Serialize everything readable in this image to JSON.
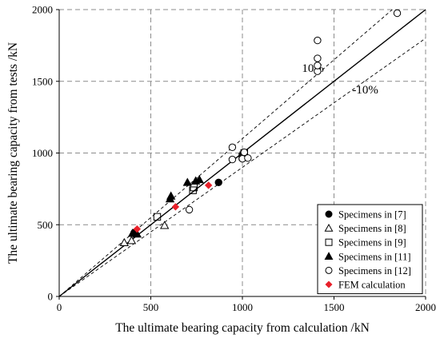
{
  "chart_data": {
    "type": "scatter",
    "xlabel": "The ultimate bearing capacity from calculation /kN",
    "ylabel": "The ultimate bearing capacity from tests /kN",
    "xlim": [
      0,
      2000
    ],
    "ylim": [
      0,
      2000
    ],
    "x_ticks": [
      "0",
      "500",
      "1000",
      "1500",
      "2000"
    ],
    "y_ticks": [
      "0",
      "500",
      "1000",
      "1500",
      "2000"
    ],
    "grid": true,
    "legend_position": "bottom-right",
    "reference_lines": [
      {
        "name": "y = x",
        "slope": 1.0,
        "style": "solid"
      },
      {
        "name": "+10%",
        "slope": 1.1,
        "style": "dashed",
        "label": "10%",
        "label_x": 1325,
        "label_y": 1565
      },
      {
        "name": "-10%",
        "slope": 0.9,
        "style": "dashed",
        "label": "-10%",
        "label_x": 1600,
        "label_y": 1415
      }
    ],
    "series": [
      {
        "name": "Specimens in [7]",
        "marker": "circle-filled",
        "color": "#000000",
        "points": [
          [
            410,
            445
          ],
          [
            870,
            795
          ]
        ]
      },
      {
        "name": "Specimens in [8]",
        "marker": "triangle-open",
        "color": "#000000",
        "points": [
          [
            355,
            375
          ],
          [
            395,
            390
          ],
          [
            575,
            495
          ]
        ]
      },
      {
        "name": "Specimens in [9]",
        "marker": "square-open",
        "color": "#000000",
        "points": [
          [
            535,
            555
          ],
          [
            730,
            740
          ],
          [
            735,
            760
          ],
          [
            1000,
            975
          ],
          [
            1005,
            985
          ],
          [
            1010,
            1000
          ]
        ]
      },
      {
        "name": "Specimens in [11]",
        "marker": "triangle-filled",
        "color": "#000000",
        "points": [
          [
            400,
            440
          ],
          [
            425,
            435
          ],
          [
            605,
            680
          ],
          [
            610,
            700
          ],
          [
            700,
            795
          ],
          [
            745,
            805
          ],
          [
            765,
            815
          ]
        ]
      },
      {
        "name": "Specimens in [12]",
        "marker": "circle-open",
        "color": "#000000",
        "points": [
          [
            710,
            605
          ],
          [
            945,
            1040
          ],
          [
            945,
            955
          ],
          [
            1000,
            960
          ],
          [
            1010,
            1005
          ],
          [
            1030,
            965
          ],
          [
            1410,
            1570
          ],
          [
            1410,
            1610
          ],
          [
            1410,
            1660
          ],
          [
            1410,
            1785
          ],
          [
            1845,
            1975
          ]
        ]
      },
      {
        "name": "FEM calculation",
        "marker": "diamond-filled",
        "color": "#e8202a",
        "points": [
          [
            425,
            470
          ],
          [
            635,
            625
          ],
          [
            815,
            775
          ]
        ]
      }
    ]
  }
}
